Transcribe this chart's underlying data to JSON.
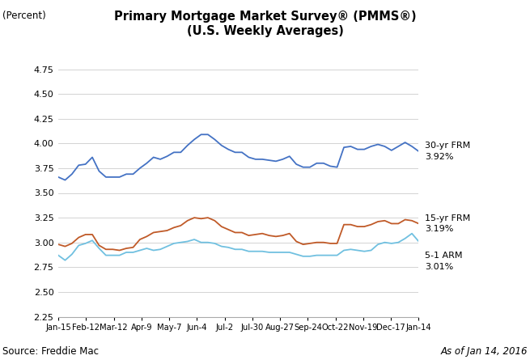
{
  "title_line1": "Primary Mortgage Market Survey® (PMMS®)",
  "title_line2": "(U.S. Weekly Averages)",
  "ylabel": "(Percent)",
  "source": "Source: Freddie Mac",
  "as_of": "As of Jan 14, 2016",
  "ylim": [
    2.25,
    4.75
  ],
  "yticks": [
    2.25,
    2.5,
    2.75,
    3.0,
    3.25,
    3.5,
    3.75,
    4.0,
    4.25,
    4.5,
    4.75
  ],
  "xtick_labels": [
    "Jan-15",
    "Feb-12",
    "Mar-12",
    "Apr-9",
    "May-7",
    "Jun-4",
    "Jul-2",
    "Jul-30",
    "Aug-27",
    "Sep-24",
    "Oct-22",
    "Nov-19",
    "Dec-17",
    "Jan-14"
  ],
  "color_30yr": "#4472C4",
  "color_15yr": "#C05A28",
  "color_arm": "#70C0E0",
  "label_30yr_line1": "30-yr FRM",
  "label_30yr_line2": "3.92%",
  "label_15yr_line1": "15-yr FRM",
  "label_15yr_line2": "3.19%",
  "label_arm_line1": "5-1 ARM",
  "label_arm_line2": "3.01%",
  "data_30yr": [
    3.66,
    3.63,
    3.69,
    3.78,
    3.79,
    3.86,
    3.72,
    3.66,
    3.66,
    3.66,
    3.69,
    3.69,
    3.75,
    3.8,
    3.86,
    3.84,
    3.87,
    3.91,
    3.91,
    3.98,
    4.04,
    4.09,
    4.09,
    4.04,
    3.98,
    3.94,
    3.91,
    3.91,
    3.86,
    3.84,
    3.84,
    3.83,
    3.82,
    3.84,
    3.87,
    3.79,
    3.76,
    3.76,
    3.8,
    3.8,
    3.77,
    3.76,
    3.96,
    3.97,
    3.94,
    3.94,
    3.97,
    3.99,
    3.97,
    3.93,
    3.97,
    4.01,
    3.97,
    3.92
  ],
  "data_15yr": [
    2.98,
    2.96,
    2.99,
    3.05,
    3.08,
    3.08,
    2.97,
    2.93,
    2.93,
    2.92,
    2.94,
    2.95,
    3.03,
    3.06,
    3.1,
    3.11,
    3.12,
    3.15,
    3.17,
    3.22,
    3.25,
    3.24,
    3.25,
    3.22,
    3.16,
    3.13,
    3.1,
    3.1,
    3.07,
    3.08,
    3.09,
    3.07,
    3.06,
    3.07,
    3.09,
    3.01,
    2.98,
    2.99,
    3.0,
    3.0,
    2.99,
    2.99,
    3.18,
    3.18,
    3.16,
    3.16,
    3.18,
    3.21,
    3.22,
    3.19,
    3.19,
    3.23,
    3.22,
    3.19
  ],
  "data_arm": [
    2.87,
    2.82,
    2.88,
    2.97,
    2.99,
    3.02,
    2.94,
    2.87,
    2.87,
    2.87,
    2.9,
    2.9,
    2.92,
    2.94,
    2.92,
    2.93,
    2.96,
    2.99,
    3.0,
    3.01,
    3.03,
    3.0,
    3.0,
    2.99,
    2.96,
    2.95,
    2.93,
    2.93,
    2.91,
    2.91,
    2.91,
    2.9,
    2.9,
    2.9,
    2.9,
    2.88,
    2.86,
    2.86,
    2.87,
    2.87,
    2.87,
    2.87,
    2.92,
    2.93,
    2.92,
    2.91,
    2.92,
    2.98,
    3.0,
    2.99,
    3.0,
    3.04,
    3.09,
    3.01
  ]
}
